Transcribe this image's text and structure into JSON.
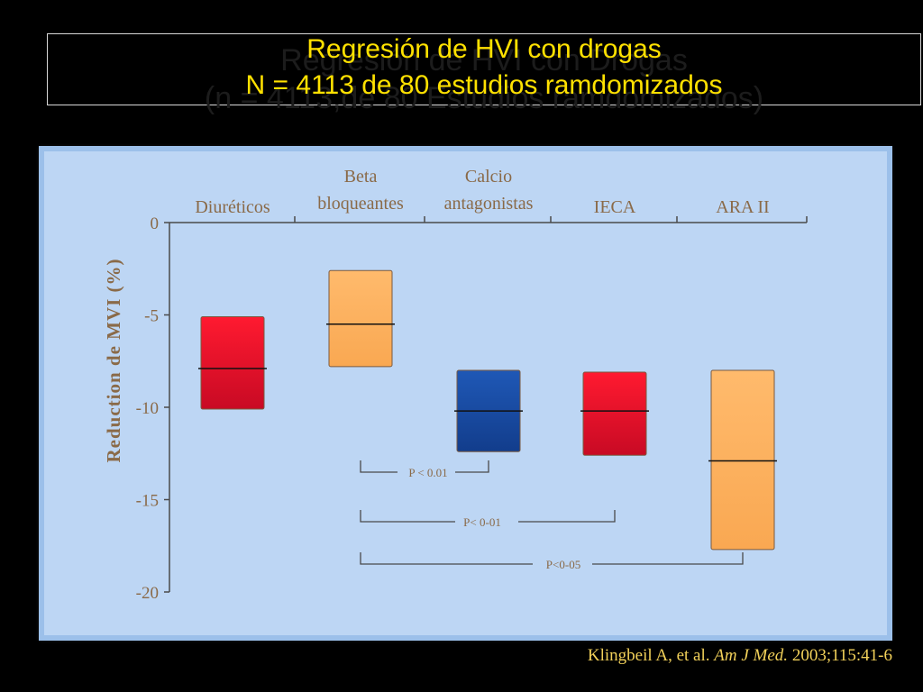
{
  "title": {
    "line1": "Regresión de HVI con drogas",
    "line2": "N = 4113 de 80 estudios ramdomizados",
    "ghost_line1": "Regresión de HVI con Drogas",
    "ghost_line2": "(n = 4113,de 80 Estudios ramdomizados)"
  },
  "citation": {
    "authors": "Klingbeil A, et al.",
    "journal": "Am J Med.",
    "rest": "2003;115:41-6"
  },
  "colors": {
    "red": "#e8102a",
    "orange": "#ffb464",
    "blue": "#1a4fa8",
    "title": "#ffe100",
    "panel": "#bdd6f4"
  },
  "chart_data": {
    "type": "floating-bar",
    "ylabel": "Reduction de MVI (%)",
    "ylim": [
      -20,
      0
    ],
    "yticks": [
      "0",
      "-5",
      "-10",
      "-15",
      "-20"
    ],
    "categories": [
      "Diuréticos",
      "Beta bloqueantes",
      "Calcio antagonistas",
      "IECA",
      "ARA II"
    ],
    "category_label_lines": [
      [
        "Diuréticos"
      ],
      [
        "Beta",
        "bloqueantes"
      ],
      [
        "Calcio",
        "antagonistas"
      ],
      [
        "IECA"
      ],
      [
        "ARA II"
      ]
    ],
    "bars": [
      {
        "category": "Diuréticos",
        "top": -5.1,
        "bottom": -10.1,
        "mean": -7.9,
        "color": "red"
      },
      {
        "category": "Beta bloqueantes",
        "top": -2.6,
        "bottom": -7.8,
        "mean": -5.5,
        "color": "orange"
      },
      {
        "category": "Calcio antagonistas",
        "top": -8.0,
        "bottom": -12.4,
        "mean": -10.2,
        "color": "blue"
      },
      {
        "category": "IECA",
        "top": -8.1,
        "bottom": -12.6,
        "mean": -10.2,
        "color": "red"
      },
      {
        "category": "ARA II",
        "top": -8.0,
        "bottom": -17.7,
        "mean": -12.9,
        "color": "orange"
      }
    ],
    "annotations": [
      {
        "label": "P < 0.01",
        "from": "Beta bloqueantes",
        "to": "Calcio antagonistas"
      },
      {
        "label": "P< 0-01",
        "from": "Beta bloqueantes",
        "to": "IECA"
      },
      {
        "label": "P<0-05",
        "from": "Beta bloqueantes",
        "to": "ARA II"
      }
    ]
  }
}
